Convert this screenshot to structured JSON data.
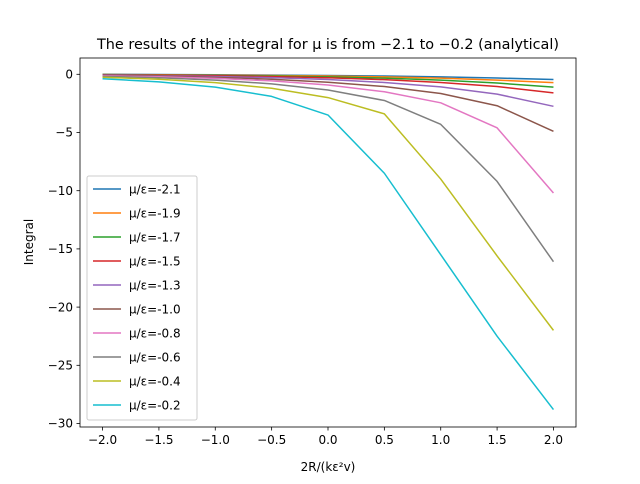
{
  "chart_data": {
    "type": "line",
    "title": "The results of the integral for μ is from −2.1 to −0.2 (analytical)",
    "xlabel": "2R/(kε²v)",
    "ylabel": "Integral",
    "xlim": [
      -2.2,
      2.2
    ],
    "ylim": [
      -30.3,
      1.4
    ],
    "xticks": [
      -2.0,
      -1.5,
      -1.0,
      -0.5,
      0.0,
      0.5,
      1.0,
      1.5,
      2.0
    ],
    "xtick_labels": [
      "−2.0",
      "−1.5",
      "−1.0",
      "−0.5",
      "0.0",
      "0.5",
      "1.0",
      "1.5",
      "2.0"
    ],
    "yticks": [
      0,
      -5,
      -10,
      -15,
      -20,
      -25,
      -30
    ],
    "ytick_labels": [
      "0",
      "−5",
      "−10",
      "−15",
      "−20",
      "−25",
      "−30"
    ],
    "legend_position": "lower-left",
    "grid": false,
    "x": [
      -2.0,
      -1.5,
      -1.0,
      -0.5,
      0.0,
      0.5,
      1.0,
      1.5,
      2.0
    ],
    "series": [
      {
        "name": "μ/ε=-2.1",
        "color": "#1f77b4",
        "values": [
          0.0,
          -0.02,
          -0.04,
          -0.07,
          -0.1,
          -0.15,
          -0.22,
          -0.32,
          -0.45
        ]
      },
      {
        "name": "μ/ε=-1.9",
        "color": "#ff7f0e",
        "values": [
          -0.02,
          -0.04,
          -0.07,
          -0.1,
          -0.15,
          -0.22,
          -0.33,
          -0.5,
          -0.72
        ]
      },
      {
        "name": "μ/ε=-1.7",
        "color": "#2ca02c",
        "values": [
          -0.03,
          -0.06,
          -0.1,
          -0.15,
          -0.22,
          -0.33,
          -0.5,
          -0.75,
          -1.1
        ]
      },
      {
        "name": "μ/ε=-1.5",
        "color": "#d62728",
        "values": [
          -0.05,
          -0.08,
          -0.13,
          -0.2,
          -0.3,
          -0.46,
          -0.7,
          -1.05,
          -1.6
        ]
      },
      {
        "name": "μ/ε=-1.3",
        "color": "#9467bd",
        "values": [
          -0.07,
          -0.12,
          -0.19,
          -0.29,
          -0.45,
          -0.7,
          -1.08,
          -1.7,
          -2.75
        ]
      },
      {
        "name": "μ/ε=-1.0",
        "color": "#8c564b",
        "values": [
          -0.1,
          -0.16,
          -0.26,
          -0.42,
          -0.68,
          -1.05,
          -1.65,
          -2.7,
          -4.9
        ]
      },
      {
        "name": "μ/ε=-0.8",
        "color": "#e377c2",
        "values": [
          -0.13,
          -0.21,
          -0.35,
          -0.57,
          -0.92,
          -1.5,
          -2.45,
          -4.6,
          -10.2
        ]
      },
      {
        "name": "μ/ε=-0.6",
        "color": "#7f7f7f",
        "values": [
          -0.18,
          -0.3,
          -0.5,
          -0.82,
          -1.35,
          -2.25,
          -4.3,
          -9.2,
          -16.1
        ]
      },
      {
        "name": "μ/ε=-0.4",
        "color": "#bcbd22",
        "values": [
          -0.25,
          -0.43,
          -0.72,
          -1.2,
          -2.0,
          -3.4,
          -9.0,
          -15.6,
          -22.0
        ]
      },
      {
        "name": "μ/ε=-0.2",
        "color": "#17becf",
        "values": [
          -0.38,
          -0.65,
          -1.1,
          -1.9,
          -3.5,
          -8.5,
          -15.5,
          -22.5,
          -28.8
        ]
      }
    ]
  }
}
